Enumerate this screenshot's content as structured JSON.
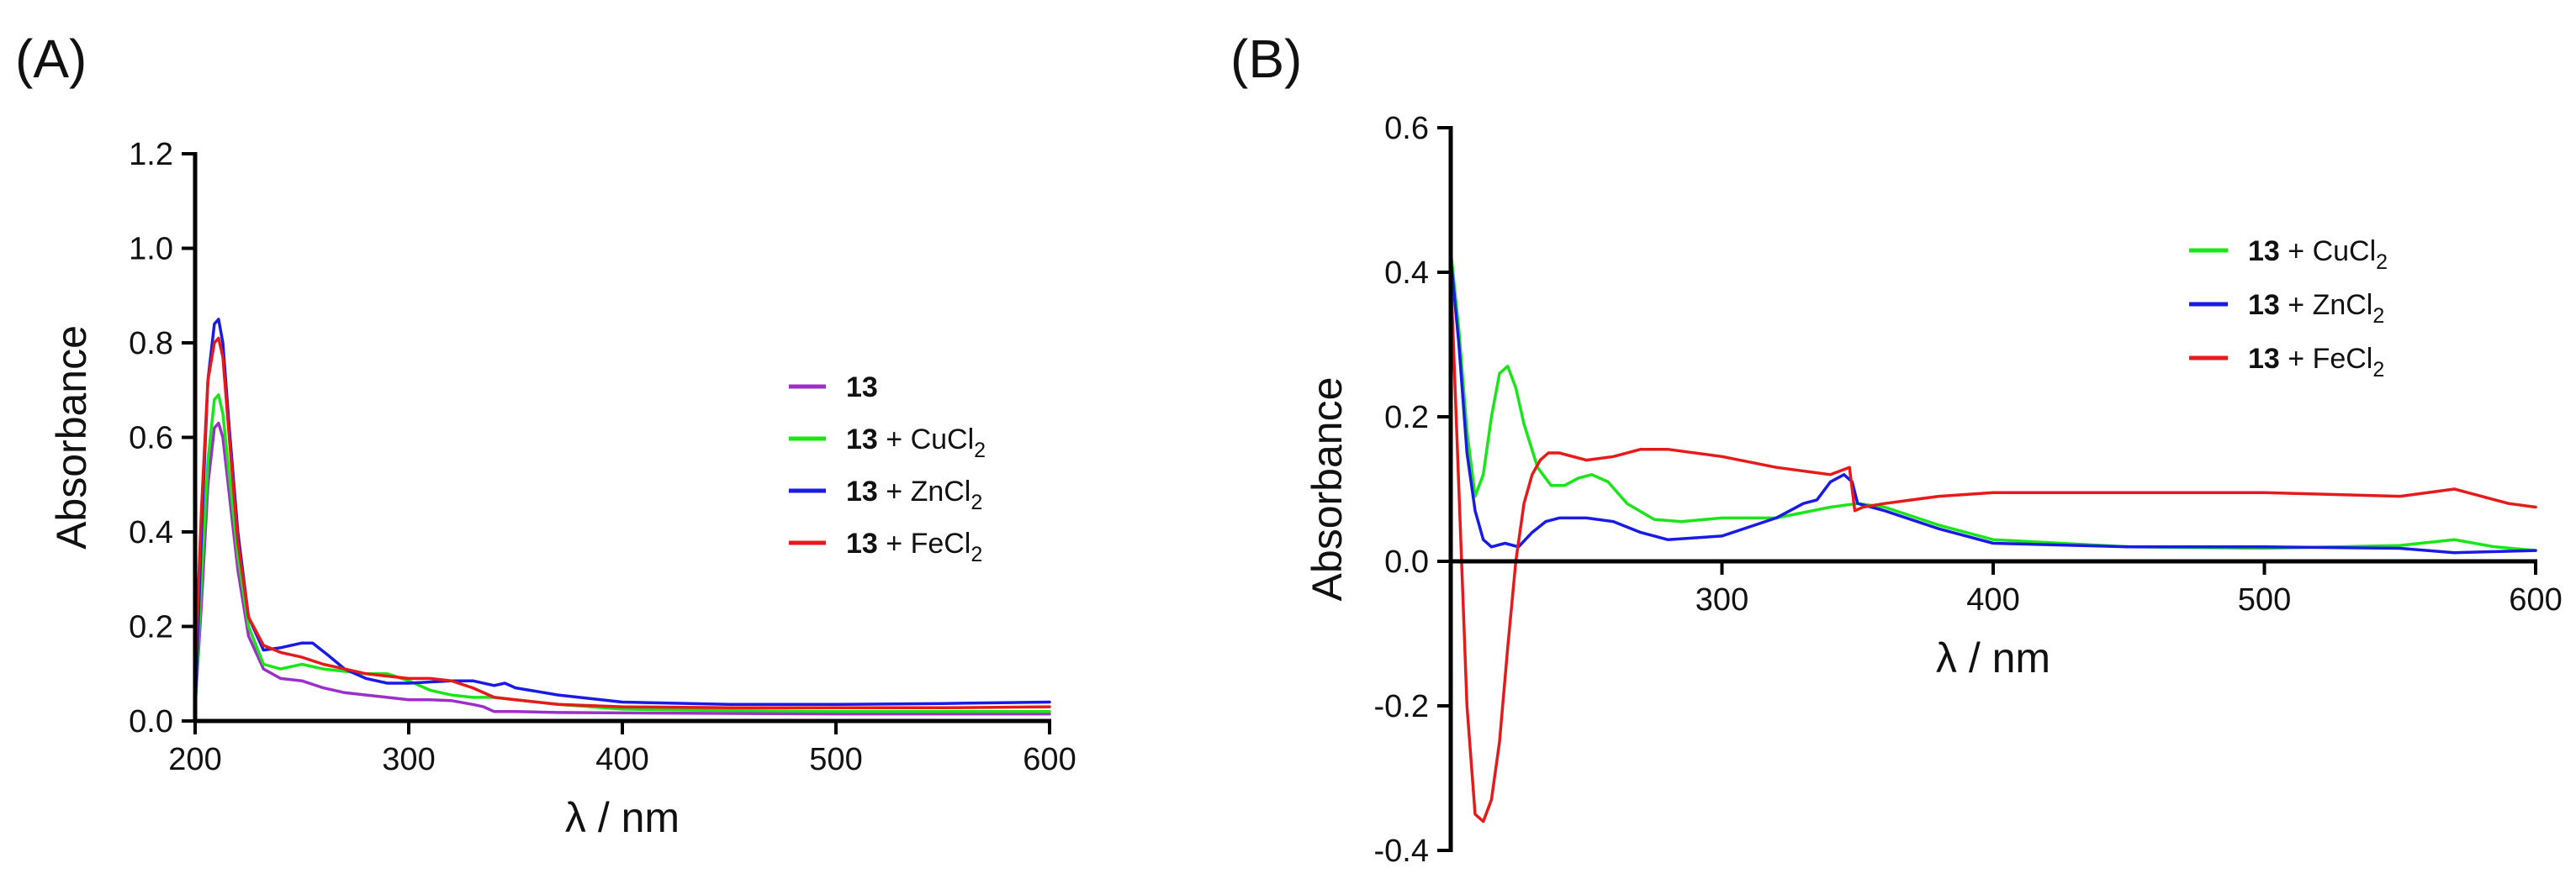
{
  "chart_data": [
    {
      "type": "line",
      "panel_label": "(A)",
      "xlabel": "λ / nm",
      "ylabel": "Absorbance",
      "xlim": [
        200,
        600
      ],
      "ylim": [
        0.0,
        1.2
      ],
      "xticks": [
        200,
        300,
        400,
        500,
        600
      ],
      "xtick_labels": [
        "200",
        "300",
        "400",
        "500",
        "600"
      ],
      "yticks": [
        0.0,
        0.2,
        0.4,
        0.6,
        0.8,
        1.0,
        1.2
      ],
      "ytick_labels": [
        "0.0",
        "0.2",
        "0.4",
        "0.6",
        "0.8",
        "1.0",
        "1.2"
      ],
      "legend_position": "center-right",
      "series": [
        {
          "name": "13",
          "compound": "13",
          "reagent": "",
          "reagent_sub": "",
          "color": "#9b30c8",
          "x": [
            200,
            203,
            206,
            209,
            211,
            213,
            216,
            220,
            225,
            232,
            240,
            250,
            260,
            270,
            280,
            290,
            300,
            310,
            320,
            330,
            335,
            340,
            350,
            370,
            400,
            450,
            500,
            550,
            600
          ],
          "y": [
            0.03,
            0.25,
            0.5,
            0.62,
            0.63,
            0.6,
            0.48,
            0.32,
            0.18,
            0.11,
            0.09,
            0.085,
            0.07,
            0.06,
            0.055,
            0.05,
            0.045,
            0.045,
            0.043,
            0.035,
            0.03,
            0.02,
            0.02,
            0.018,
            0.017,
            0.016,
            0.015,
            0.015,
            0.015
          ]
        },
        {
          "name": "13 + CuCl2",
          "compound": "13",
          "reagent": " + CuCl",
          "reagent_sub": "2",
          "color": "#19e619",
          "x": [
            200,
            203,
            206,
            209,
            211,
            213,
            216,
            220,
            225,
            232,
            240,
            250,
            260,
            270,
            280,
            290,
            300,
            310,
            320,
            330,
            340,
            350,
            370,
            400,
            450,
            500,
            550,
            600
          ],
          "y": [
            0.02,
            0.3,
            0.55,
            0.68,
            0.69,
            0.65,
            0.52,
            0.35,
            0.2,
            0.12,
            0.11,
            0.12,
            0.11,
            0.105,
            0.1,
            0.1,
            0.085,
            0.065,
            0.055,
            0.05,
            0.05,
            0.045,
            0.035,
            0.025,
            0.022,
            0.02,
            0.02,
            0.02
          ]
        },
        {
          "name": "13 + ZnCl2",
          "compound": "13",
          "reagent": " + ZnCl",
          "reagent_sub": "2",
          "color": "#1a1ae6",
          "x": [
            200,
            203,
            206,
            209,
            211,
            213,
            216,
            220,
            225,
            232,
            240,
            250,
            255,
            262,
            270,
            280,
            290,
            300,
            320,
            330,
            340,
            345,
            350,
            370,
            400,
            450,
            500,
            550,
            600
          ],
          "y": [
            0.02,
            0.4,
            0.72,
            0.84,
            0.85,
            0.8,
            0.62,
            0.4,
            0.22,
            0.15,
            0.155,
            0.165,
            0.165,
            0.14,
            0.11,
            0.09,
            0.08,
            0.08,
            0.085,
            0.085,
            0.075,
            0.08,
            0.07,
            0.055,
            0.04,
            0.035,
            0.035,
            0.037,
            0.04
          ]
        },
        {
          "name": "13 + FeCl2",
          "compound": "13",
          "reagent": " + FeCl",
          "reagent_sub": "2",
          "color": "#e61a1a",
          "x": [
            200,
            203,
            206,
            209,
            211,
            213,
            216,
            220,
            225,
            232,
            240,
            250,
            260,
            270,
            280,
            290,
            300,
            310,
            320,
            330,
            340,
            350,
            370,
            400,
            450,
            500,
            550,
            600
          ],
          "y": [
            0.1,
            0.45,
            0.72,
            0.8,
            0.81,
            0.77,
            0.6,
            0.38,
            0.22,
            0.16,
            0.145,
            0.135,
            0.12,
            0.11,
            0.1,
            0.095,
            0.09,
            0.09,
            0.085,
            0.07,
            0.05,
            0.045,
            0.035,
            0.03,
            0.028,
            0.028,
            0.028,
            0.03
          ]
        }
      ]
    },
    {
      "type": "line",
      "panel_label": "(B)",
      "xlabel": "λ / nm",
      "ylabel": "Absorbance",
      "xlim": [
        200,
        600
      ],
      "ylim": [
        -0.4,
        0.6
      ],
      "xticks": [
        300,
        400,
        500,
        600
      ],
      "xtick_labels": [
        "300",
        "400",
        "500",
        "600"
      ],
      "yticks": [
        -0.4,
        -0.2,
        0.0,
        0.2,
        0.4,
        0.6
      ],
      "ytick_labels": [
        "-0.4",
        "-0.2",
        "0.0",
        "0.2",
        "0.4",
        "0.6"
      ],
      "legend_position": "top-right",
      "series": [
        {
          "name": "13 + CuCl2",
          "compound": "13",
          "reagent": " + CuCl",
          "reagent_sub": "2",
          "color": "#19e619",
          "x": [
            200,
            203,
            206,
            209,
            212,
            215,
            218,
            221,
            224,
            227,
            232,
            237,
            242,
            247,
            252,
            258,
            265,
            275,
            285,
            300,
            320,
            340,
            350,
            360,
            380,
            400,
            450,
            500,
            550,
            570,
            585,
            600
          ],
          "y": [
            0.43,
            0.32,
            0.18,
            0.09,
            0.12,
            0.2,
            0.26,
            0.27,
            0.24,
            0.19,
            0.13,
            0.105,
            0.105,
            0.115,
            0.12,
            0.11,
            0.08,
            0.058,
            0.055,
            0.06,
            0.06,
            0.075,
            0.08,
            0.075,
            0.05,
            0.03,
            0.02,
            0.018,
            0.022,
            0.03,
            0.02,
            0.015
          ]
        },
        {
          "name": "13 + ZnCl2",
          "compound": "13",
          "reagent": " + ZnCl",
          "reagent_sub": "2",
          "color": "#1a1ae6",
          "x": [
            200,
            203,
            206,
            209,
            212,
            215,
            220,
            225,
            230,
            235,
            240,
            250,
            260,
            270,
            280,
            300,
            320,
            330,
            335,
            340,
            345,
            348,
            350,
            360,
            380,
            400,
            450,
            500,
            550,
            570,
            600
          ],
          "y": [
            0.42,
            0.3,
            0.15,
            0.07,
            0.03,
            0.02,
            0.025,
            0.02,
            0.04,
            0.055,
            0.06,
            0.06,
            0.055,
            0.04,
            0.03,
            0.035,
            0.06,
            0.08,
            0.085,
            0.11,
            0.12,
            0.11,
            0.08,
            0.07,
            0.045,
            0.025,
            0.02,
            0.02,
            0.018,
            0.012,
            0.015
          ]
        },
        {
          "name": "13 + FeCl2",
          "compound": "13",
          "reagent": " + FeCl",
          "reagent_sub": "2",
          "color": "#e61a1a",
          "x": [
            200,
            203,
            206,
            209,
            212,
            215,
            218,
            221,
            224,
            227,
            230,
            233,
            236,
            240,
            250,
            260,
            270,
            280,
            300,
            320,
            340,
            347,
            349,
            352,
            360,
            380,
            400,
            450,
            500,
            550,
            570,
            580,
            590,
            600
          ],
          "y": [
            0.4,
            0.1,
            -0.2,
            -0.35,
            -0.36,
            -0.33,
            -0.25,
            -0.12,
            0.0,
            0.08,
            0.12,
            0.14,
            0.15,
            0.15,
            0.14,
            0.145,
            0.155,
            0.155,
            0.145,
            0.13,
            0.12,
            0.13,
            0.07,
            0.075,
            0.08,
            0.09,
            0.095,
            0.095,
            0.095,
            0.09,
            0.1,
            0.09,
            0.08,
            0.075
          ]
        }
      ]
    }
  ]
}
